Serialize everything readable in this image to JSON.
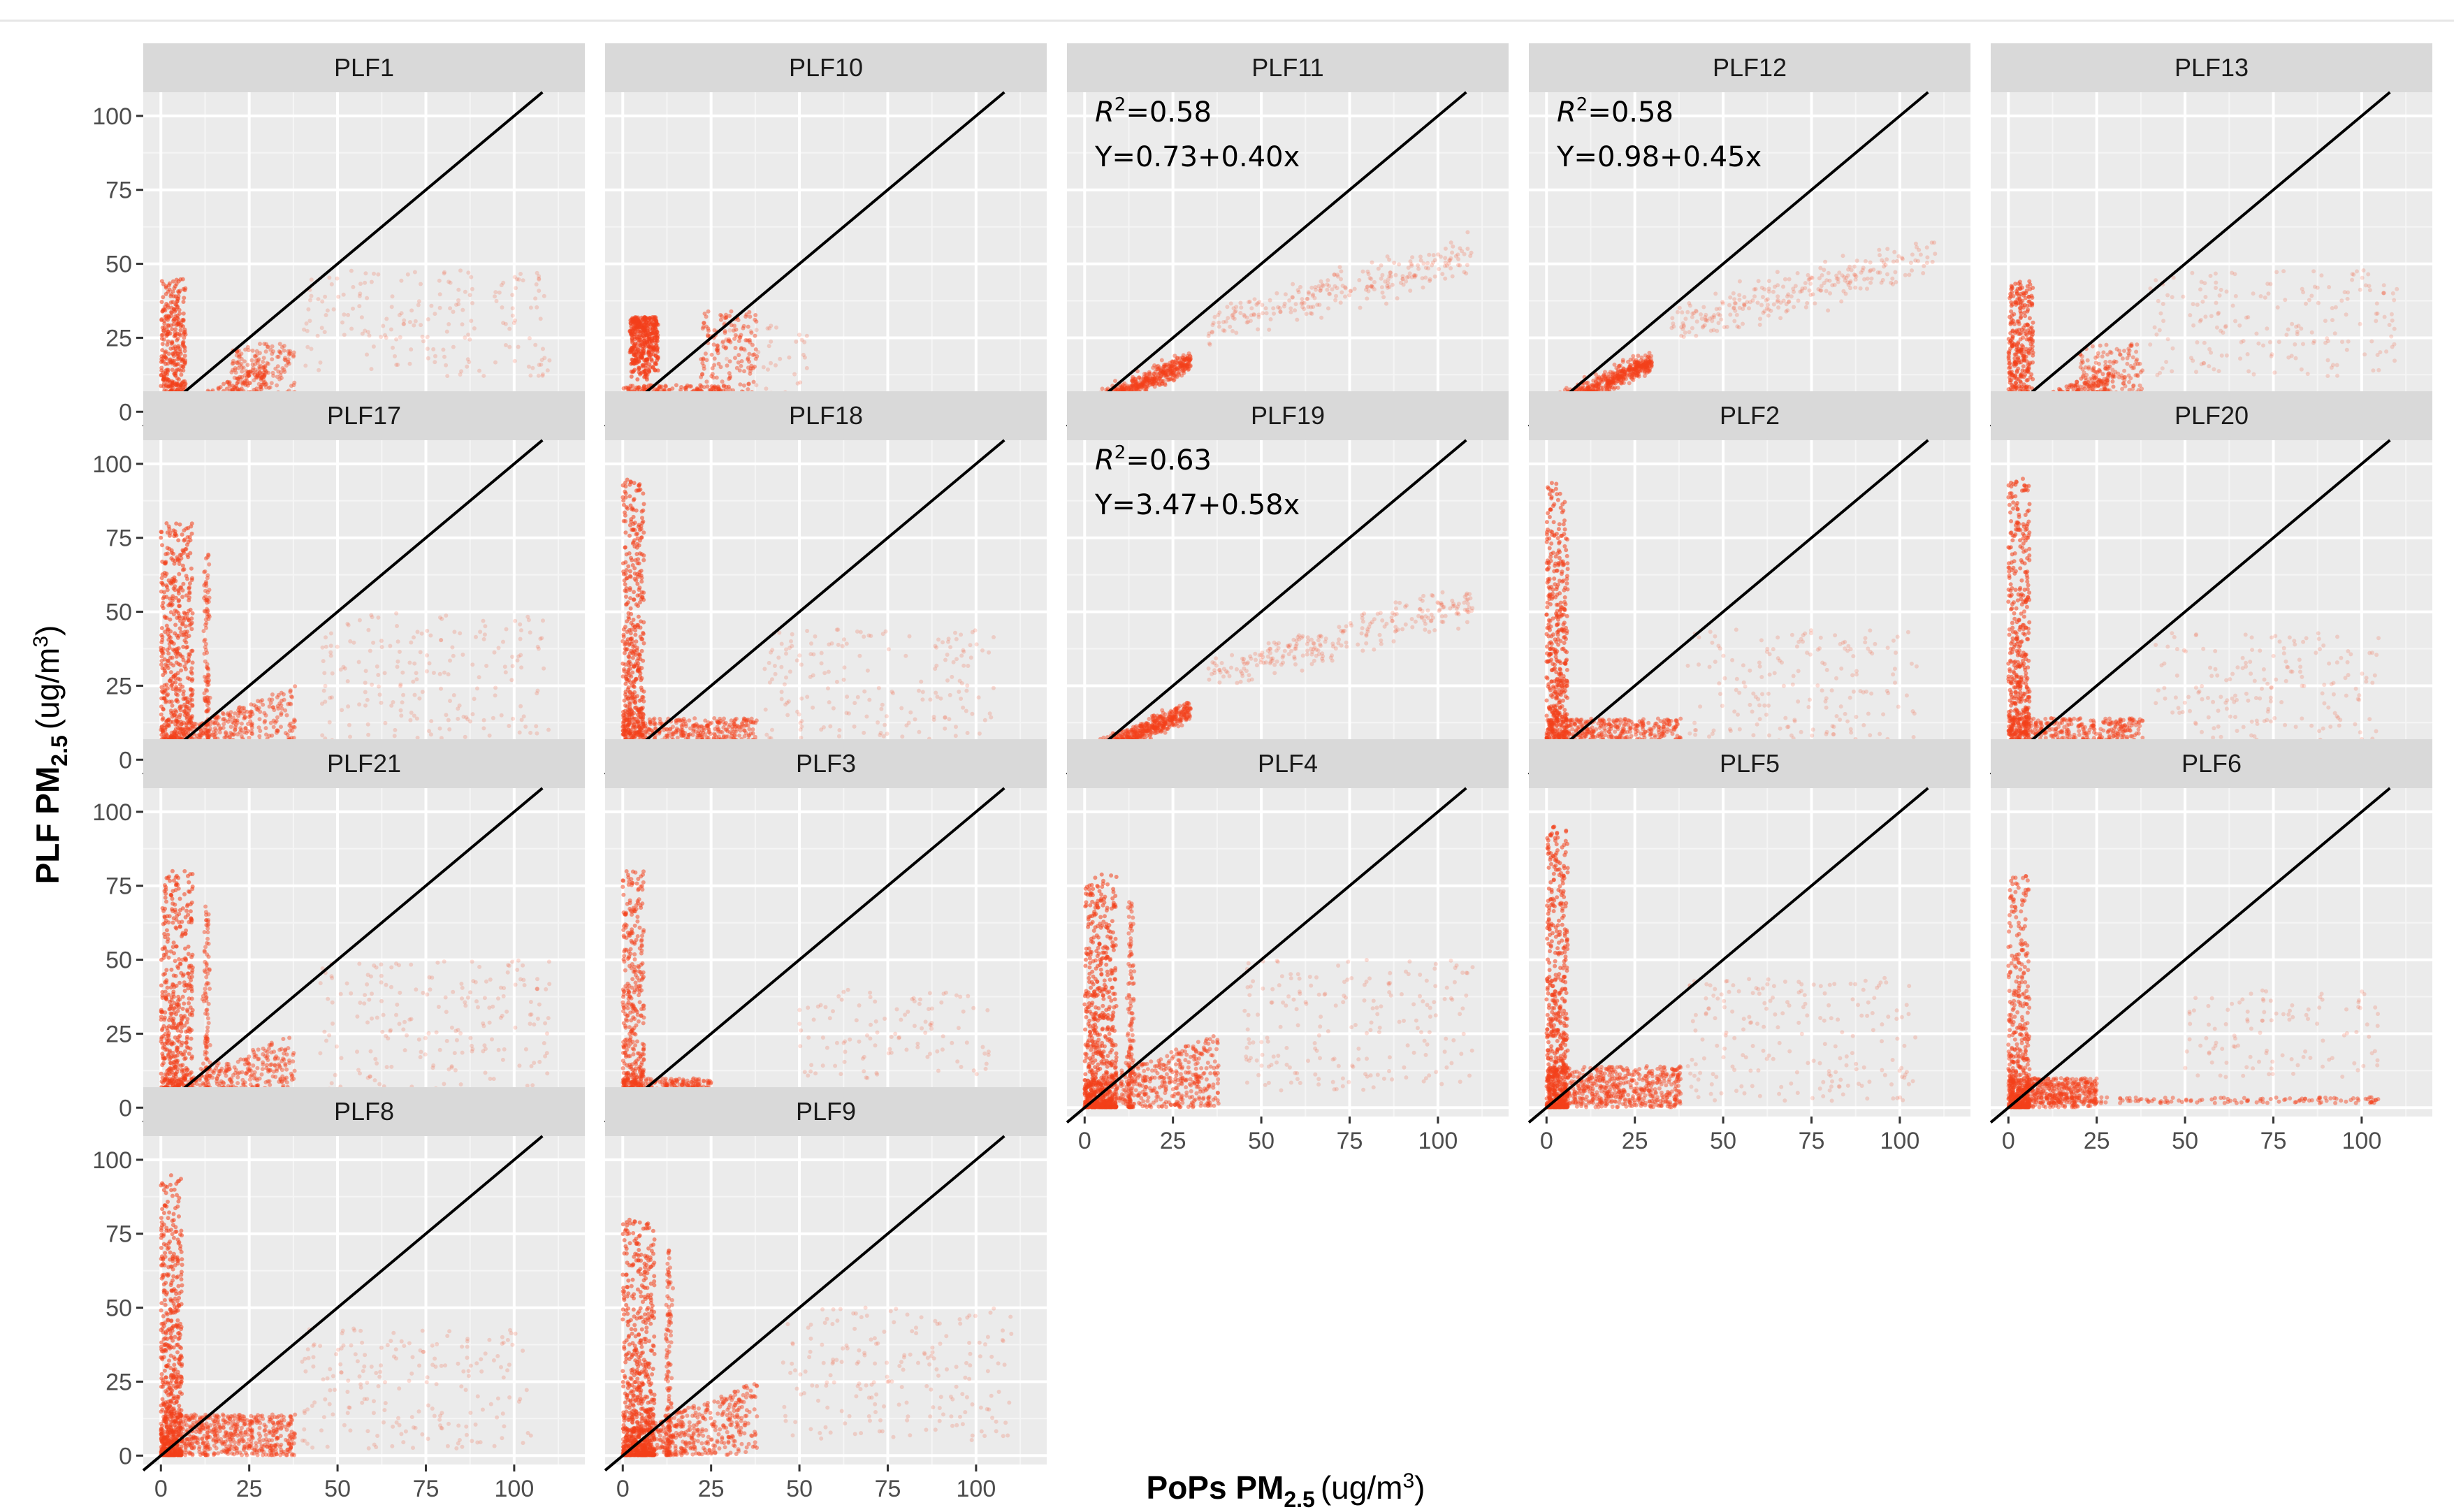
{
  "chart_data": {
    "type": "scatter",
    "layout": "facet_wrap",
    "ncol": 5,
    "xlabel": "PoPs PM",
    "xlabel_sub": "2.5",
    "xlabel_unit": "(ug/m",
    "xlabel_unit_sup": "3",
    "xlabel_unit_close": ")",
    "ylabel": "PLF PM",
    "ylabel_sub": "2.5",
    "ylabel_unit": "(ug/m",
    "ylabel_unit_sup": "3",
    "ylabel_unit_close": ")",
    "xlim": [
      -5,
      120
    ],
    "ylim": [
      -3,
      108
    ],
    "x_ticks": [
      0,
      25,
      50,
      75,
      100
    ],
    "y_ticks": [
      0,
      25,
      50,
      75,
      100
    ],
    "x_tick_labels": [
      "0",
      "25",
      "50",
      "75",
      "100"
    ],
    "y_tick_labels": [
      "0",
      "25",
      "50",
      "75",
      "100"
    ],
    "reference_line": "y = x",
    "point_color": "#f3401a",
    "line_color": "#000000",
    "panel_background": "#ebebeb",
    "strip_background": "#d9d9d9",
    "panels": [
      {
        "label": "PLF1",
        "pattern": "A"
      },
      {
        "label": "PLF10",
        "pattern": "F"
      },
      {
        "label": "PLF11",
        "pattern": "E",
        "r2_symbol": "R",
        "r2_sup": "2",
        "r2_value": "=0.58",
        "equation": "Y=0.73+0.40x"
      },
      {
        "label": "PLF12",
        "pattern": "E",
        "r2_symbol": "R",
        "r2_sup": "2",
        "r2_value": "=0.58",
        "equation": "Y=0.98+0.45x"
      },
      {
        "label": "PLF13",
        "pattern": "A"
      },
      {
        "label": "PLF17",
        "pattern": "B"
      },
      {
        "label": "PLF18",
        "pattern": "C"
      },
      {
        "label": "PLF19",
        "pattern": "E",
        "r2_symbol": "R",
        "r2_sup": "2",
        "r2_value": "=0.63",
        "equation": "Y=3.47+0.58x"
      },
      {
        "label": "PLF2",
        "pattern": "C"
      },
      {
        "label": "PLF20",
        "pattern": "C"
      },
      {
        "label": "PLF21",
        "pattern": "B"
      },
      {
        "label": "PLF3",
        "pattern": "D"
      },
      {
        "label": "PLF4",
        "pattern": "B"
      },
      {
        "label": "PLF5",
        "pattern": "C"
      },
      {
        "label": "PLF6",
        "pattern": "D"
      },
      {
        "label": "PLF8",
        "pattern": "C"
      },
      {
        "label": "PLF9",
        "pattern": "B"
      }
    ]
  }
}
